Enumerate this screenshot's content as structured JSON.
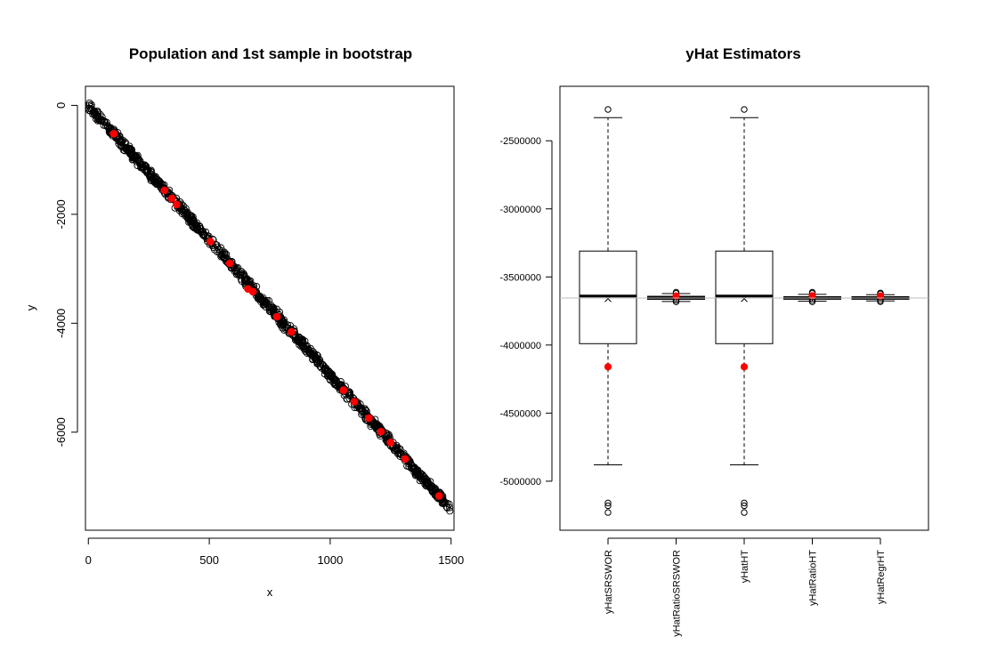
{
  "chart_data": [
    {
      "type": "scatter",
      "title": "Population and 1st sample in bootstrap",
      "xlabel": "x",
      "ylabel": "y",
      "xlim": [
        -12,
        1512
      ],
      "ylim": [
        -7800,
        350
      ],
      "x_ticks": [
        0,
        500,
        1000,
        1500
      ],
      "y_ticks": [
        0,
        -2000,
        -4000,
        -6000
      ],
      "grid": false,
      "series": [
        {
          "marker": "open-circle",
          "color": "#000000",
          "relation": "y ≈ -4.95 x",
          "x_range": [
            0,
            1500
          ],
          "point_count": 1000
        },
        {
          "marker": "filled-circle",
          "color": "#ff0000",
          "points": [
            [
              105,
              -520
            ],
            [
              315,
              -1560
            ],
            [
              345,
              -1710
            ],
            [
              365,
              -1820
            ],
            [
              505,
              -2500
            ],
            [
              585,
              -2900
            ],
            [
              660,
              -3370
            ],
            [
              680,
              -3420
            ],
            [
              780,
              -3880
            ],
            [
              840,
              -4160
            ],
            [
              1055,
              -5230
            ],
            [
              1100,
              -5440
            ],
            [
              1160,
              -5740
            ],
            [
              1210,
              -5990
            ],
            [
              1250,
              -6190
            ],
            [
              1310,
              -6490
            ],
            [
              1450,
              -7170
            ]
          ]
        }
      ]
    },
    {
      "type": "boxplot",
      "title": "yHat Estimators",
      "ylim": [
        -5360000,
        -2100000
      ],
      "y_ticks": [
        -2500000,
        -3000000,
        -3500000,
        -4000000,
        -4500000,
        -5000000
      ],
      "y_tick_labels": [
        "-2500000",
        "-3000000",
        "-3500000",
        "-4000000",
        "-4500000",
        "-5000000"
      ],
      "categories": [
        "yHatSRSWOR",
        "yHatRatioSRSWOR",
        "yHatHT",
        "yHatRatioHT",
        "yHatRegrHT"
      ],
      "reference_line": -3655000,
      "reference_color": "#bebebe",
      "mean_marker": "x",
      "sample_marker_color": "#ff0000",
      "boxes": [
        {
          "whisker_low": -4880000,
          "q1": -3990000,
          "median": -3640000,
          "q3": -3310000,
          "whisker_high": -2330000,
          "mean": -3660000,
          "sample_estimate": -4160000,
          "outliers": [
            -2270000,
            -5160000,
            -5180000,
            -5230000
          ]
        },
        {
          "whisker_low": -3680000,
          "q1": -3665000,
          "median": -3652000,
          "q3": -3642000,
          "whisker_high": -3622000,
          "mean": -3655000,
          "sample_estimate": -3640000,
          "outliers": [
            -3612000,
            -3620000,
            -3672000,
            -3683000
          ]
        },
        {
          "whisker_low": -4880000,
          "q1": -3990000,
          "median": -3640000,
          "q3": -3310000,
          "whisker_high": -2330000,
          "mean": -3660000,
          "sample_estimate": -4160000,
          "outliers": [
            -2270000,
            -5160000,
            -5180000,
            -5230000
          ]
        },
        {
          "whisker_low": -3678000,
          "q1": -3664000,
          "median": -3654000,
          "q3": -3645000,
          "whisker_high": -3628000,
          "mean": -3655000,
          "sample_estimate": -3638000,
          "outliers": [
            -3612000,
            -3620000,
            -3672000,
            -3683000
          ]
        },
        {
          "whisker_low": -3676000,
          "q1": -3664000,
          "median": -3654000,
          "q3": -3645000,
          "whisker_high": -3630000,
          "mean": -3655000,
          "sample_estimate": -3640000,
          "outliers": [
            -3618000,
            -3624000,
            -3672000,
            -3682000
          ]
        }
      ]
    }
  ]
}
